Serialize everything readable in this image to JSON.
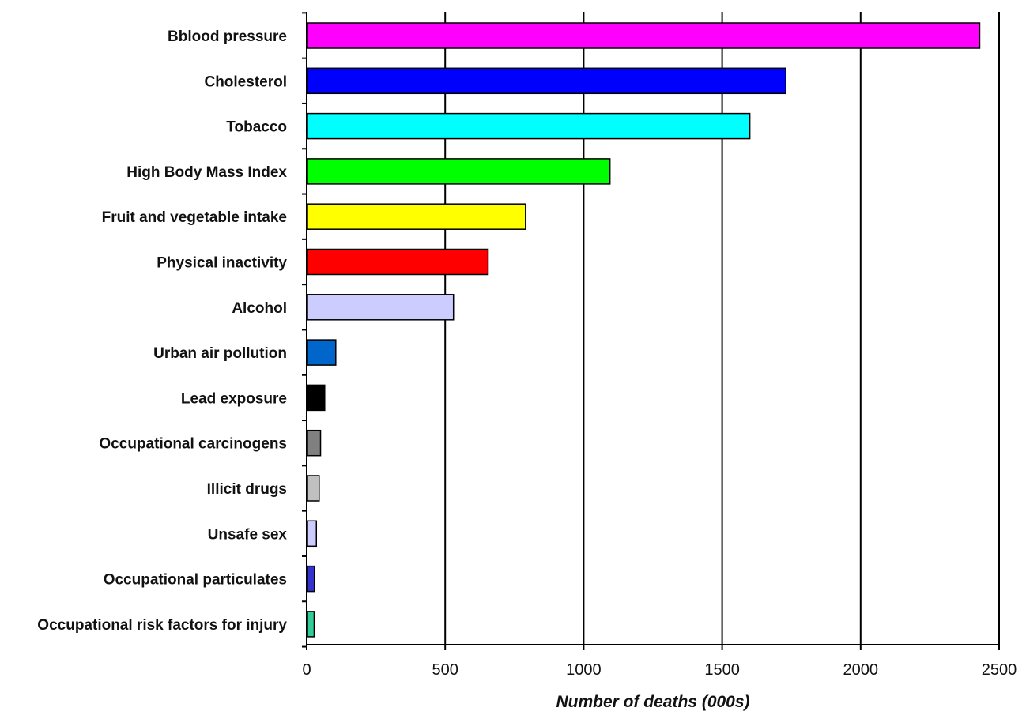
{
  "chart_data": {
    "type": "bar",
    "orientation": "horizontal",
    "title": "",
    "xlabel": "Number of deaths (000s)",
    "ylabel": "",
    "xlim": [
      0,
      2500
    ],
    "x_ticks": [
      0,
      500,
      1000,
      1500,
      2000,
      2500
    ],
    "grid": "vertical",
    "legend": "none",
    "categories": [
      "Bblood pressure",
      "Cholesterol",
      "Tobacco",
      "High Body Mass Index",
      "Fruit and vegetable intake",
      "Physical inactivity",
      "Alcohol",
      "Urban air pollution",
      "Lead exposure",
      "Occupational carcinogens",
      "Illicit drugs",
      "Unsafe sex",
      "Occupational particulates",
      "Occupational risk factors for injury"
    ],
    "values": [
      2430,
      1730,
      1600,
      1095,
      790,
      655,
      530,
      105,
      65,
      50,
      45,
      35,
      28,
      27
    ],
    "colors": [
      "#ff00ff",
      "#0000ff",
      "#00ffff",
      "#00ff00",
      "#ffff00",
      "#ff0000",
      "#ccccff",
      "#0066cc",
      "#000000",
      "#808080",
      "#c0c0c0",
      "#ccccff",
      "#3333cc",
      "#33cc99"
    ]
  }
}
